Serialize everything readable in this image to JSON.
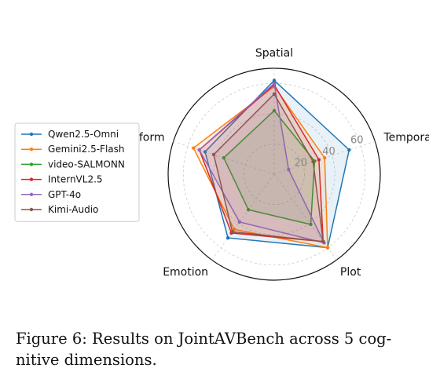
{
  "caption": "Figure 6: Results on JointAVBench across 5 cog- nitive dimensions.",
  "chart_data": {
    "type": "radar",
    "axes": [
      "Spatial",
      "Temporal",
      "Plot",
      "Emotion",
      "Long-form"
    ],
    "rlim": [
      0,
      70
    ],
    "ticks": [
      20,
      40,
      60
    ],
    "grid": true,
    "legend_position": "left",
    "series": [
      {
        "name": "Qwen2.5-Omni",
        "color": "#1f77b4",
        "values": [
          62,
          52,
          60,
          52,
          48
        ]
      },
      {
        "name": "Gemini2.5-Flash",
        "color": "#ff7f0e",
        "values": [
          58,
          35,
          60,
          45,
          56
        ]
      },
      {
        "name": "video-SALMONN",
        "color": "#2ca02c",
        "values": [
          42,
          28,
          41,
          29,
          35
        ]
      },
      {
        "name": "InternVL2.5",
        "color": "#d62728",
        "values": [
          59,
          31,
          55,
          48,
          52
        ]
      },
      {
        "name": "GPT-4o",
        "color": "#9467bd",
        "values": [
          60,
          10,
          56,
          39,
          52
        ]
      },
      {
        "name": "Kimi-Audio",
        "color": "#8c564b",
        "values": [
          53,
          27,
          55,
          47,
          42
        ]
      }
    ]
  }
}
